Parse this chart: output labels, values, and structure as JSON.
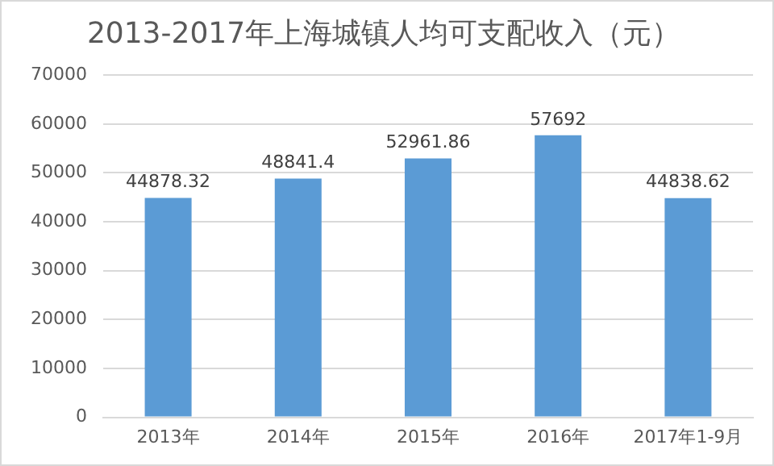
{
  "chart_data": {
    "type": "bar",
    "title": "2013-2017年上海城镇人均可支配收入（元）",
    "categories": [
      "2013年",
      "2014年",
      "2015年",
      "2016年",
      "2017年1-9月"
    ],
    "values": [
      44878.32,
      48841.4,
      52961.86,
      57692,
      44838.62
    ],
    "color": "#5b9bd5",
    "ylim": [
      0,
      70000
    ],
    "yticks": [
      0,
      10000,
      20000,
      30000,
      40000,
      50000,
      60000,
      70000
    ],
    "grid": "y",
    "data_labels": true
  }
}
